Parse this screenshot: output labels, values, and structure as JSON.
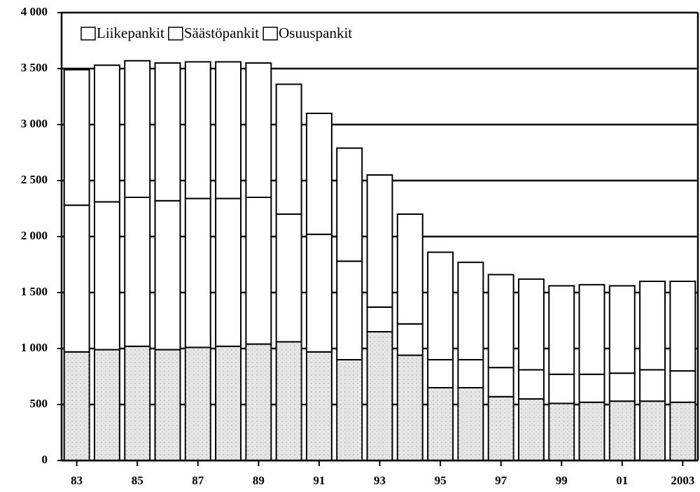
{
  "chart_data": {
    "type": "stacked_bar",
    "categories": [
      "83",
      null,
      "85",
      null,
      "87",
      null,
      "89",
      null,
      "91",
      null,
      "93",
      null,
      "95",
      null,
      "97",
      null,
      "99",
      null,
      "01",
      null,
      "2003"
    ],
    "series": [
      {
        "name": "Liikepankit",
        "color": "#e6e6e6",
        "values": [
          970,
          990,
          1020,
          990,
          1010,
          1020,
          1040,
          1060,
          970,
          900,
          1150,
          940,
          650,
          650,
          570,
          550,
          510,
          520,
          530,
          530,
          520
        ]
      },
      {
        "name": "Säästöpankit",
        "color": "#ffffff",
        "values": [
          1310,
          1320,
          1330,
          1330,
          1330,
          1320,
          1310,
          1140,
          1050,
          880,
          220,
          280,
          250,
          250,
          260,
          260,
          260,
          250,
          250,
          280,
          280
        ]
      },
      {
        "name": "Osuuspankit",
        "color": "#ffffff",
        "values": [
          1210,
          1220,
          1220,
          1230,
          1220,
          1220,
          1200,
          1160,
          1080,
          1010,
          1180,
          980,
          960,
          870,
          830,
          810,
          790,
          800,
          780,
          790,
          800
        ]
      }
    ],
    "ylim": [
      0,
      4000
    ],
    "yticks": [
      0,
      500,
      {
        "value": 1000,
        "label": "1 000"
      },
      {
        "value": 1500,
        "label": "1 500"
      },
      {
        "value": 2000,
        "label": "2 000"
      },
      {
        "value": 2500,
        "label": "2 500"
      },
      {
        "value": 3000,
        "label": "3 000"
      },
      {
        "value": 3500,
        "label": "3 500"
      },
      {
        "value": 4000,
        "label": "4 000"
      }
    ],
    "grid": true,
    "legend": "top-left"
  }
}
